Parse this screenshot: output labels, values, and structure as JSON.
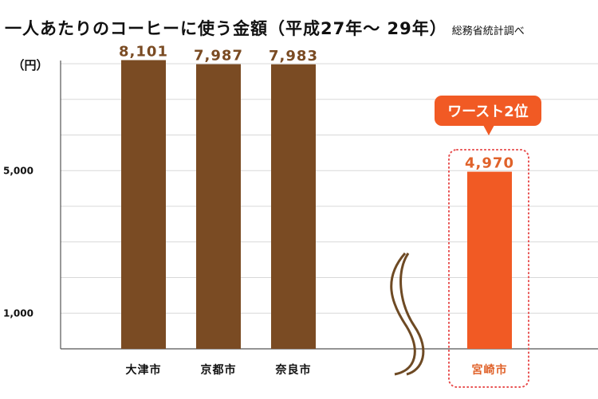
{
  "chart_data": {
    "type": "bar",
    "title": "一人あたりのコーヒーに使う金額（平成27年～ 29年）",
    "source": "総務省統計調べ",
    "ylabel": "（円）",
    "categories": [
      "大津市",
      "京都市",
      "奈良市",
      "宮崎市"
    ],
    "values": [
      8101,
      7987,
      7983,
      4970
    ],
    "value_labels": [
      "8,101",
      "7,987",
      "7,983",
      "4,970"
    ],
    "yticks": [
      {
        "value": 5000,
        "label": "5,000"
      },
      {
        "value": 1000,
        "label": "1,000"
      }
    ],
    "ylim": [
      0,
      8100
    ],
    "grid_step": 1000,
    "axis_break": true,
    "highlight": {
      "index": 3,
      "callout": "ワースト2位"
    },
    "colors": {
      "normal": "#7a4b23",
      "highlight": "#f15a24",
      "highlight_text": "#e0622a",
      "dotted": "#e85050",
      "grid": "#d8d8d8"
    }
  }
}
